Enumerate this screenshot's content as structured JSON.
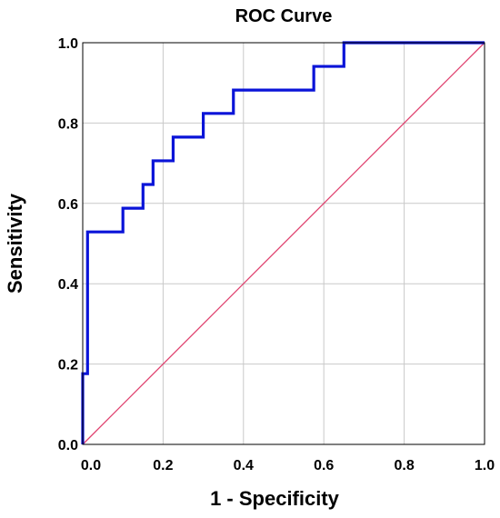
{
  "chart_data": {
    "type": "line",
    "title": "ROC Curve",
    "xlabel": "1 - Specificity",
    "ylabel": "Sensitivity",
    "xlim": [
      0,
      1
    ],
    "ylim": [
      0,
      1
    ],
    "grid": true,
    "x_ticks": [
      0.0,
      0.2,
      0.4,
      0.6,
      0.8,
      1.0
    ],
    "x_tick_labels": [
      "0.0",
      "0.2",
      "0.4",
      "0.6",
      "0.8",
      "1.0"
    ],
    "y_ticks": [
      0.0,
      0.2,
      0.4,
      0.6,
      0.8,
      1.0
    ],
    "y_tick_labels": [
      "0.0",
      "0.2",
      "0.4",
      "0.6",
      "0.8",
      "1.0"
    ],
    "series": [
      {
        "color": "#0a14d8",
        "x": [
          0.0,
          0.0,
          0.012,
          0.012,
          0.012,
          0.1,
          0.1,
          0.15,
          0.15,
          0.175,
          0.175,
          0.225,
          0.225,
          0.3,
          0.3,
          0.375,
          0.375,
          0.575,
          0.575,
          0.65,
          0.65,
          1.0
        ],
        "y": [
          0.0,
          0.176,
          0.176,
          0.353,
          0.529,
          0.529,
          0.588,
          0.588,
          0.647,
          0.647,
          0.706,
          0.706,
          0.765,
          0.765,
          0.824,
          0.824,
          0.882,
          0.882,
          0.941,
          0.941,
          1.0,
          1.0
        ]
      },
      {
        "color": "#e0406e",
        "x": [
          0,
          1
        ],
        "y": [
          0,
          1
        ]
      }
    ]
  }
}
